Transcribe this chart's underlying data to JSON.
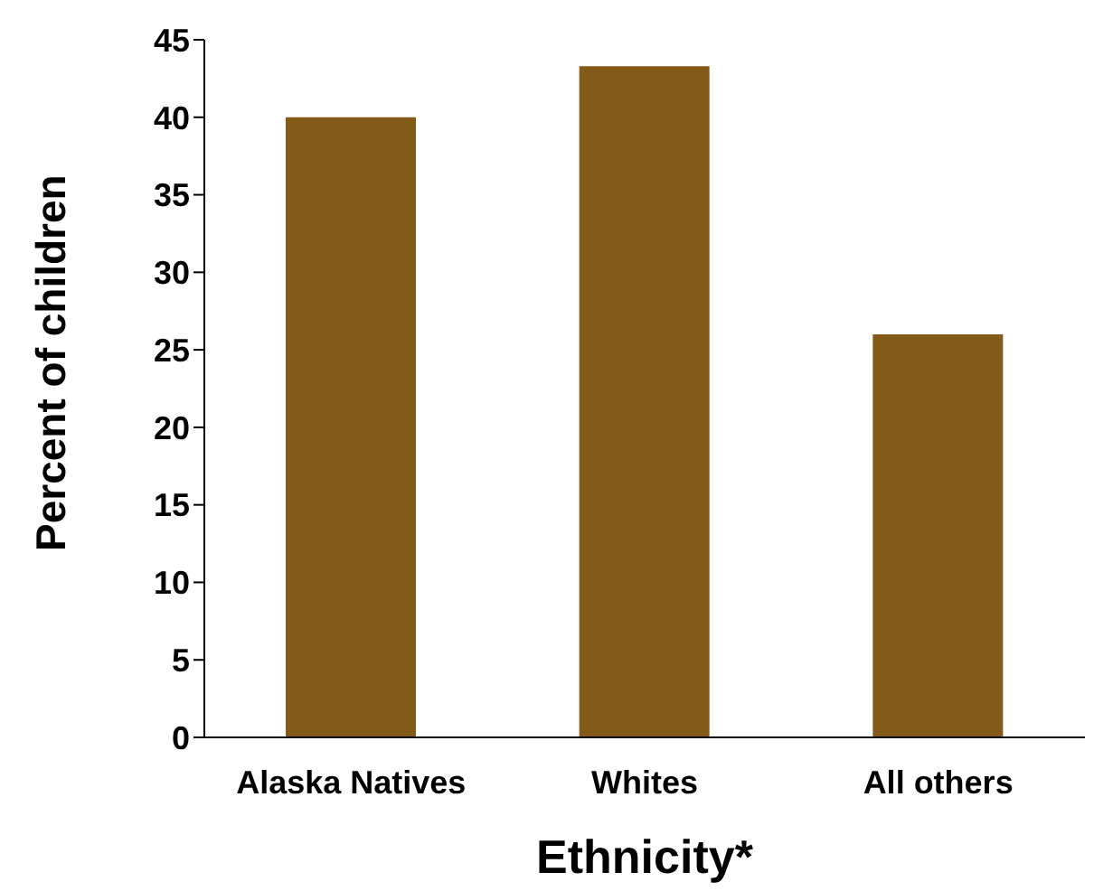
{
  "chart_data": {
    "type": "bar",
    "xlabel": "Ethnicity*",
    "ylabel": "Percent of children",
    "categories": [
      "Alaska Natives",
      "Whites",
      "All others"
    ],
    "values": [
      40,
      43.3,
      26
    ],
    "color": "#835a17",
    "ylim": [
      0,
      45
    ],
    "yticks": [
      0,
      5,
      10,
      15,
      20,
      25,
      30,
      35,
      40,
      45
    ],
    "grid": false
  }
}
